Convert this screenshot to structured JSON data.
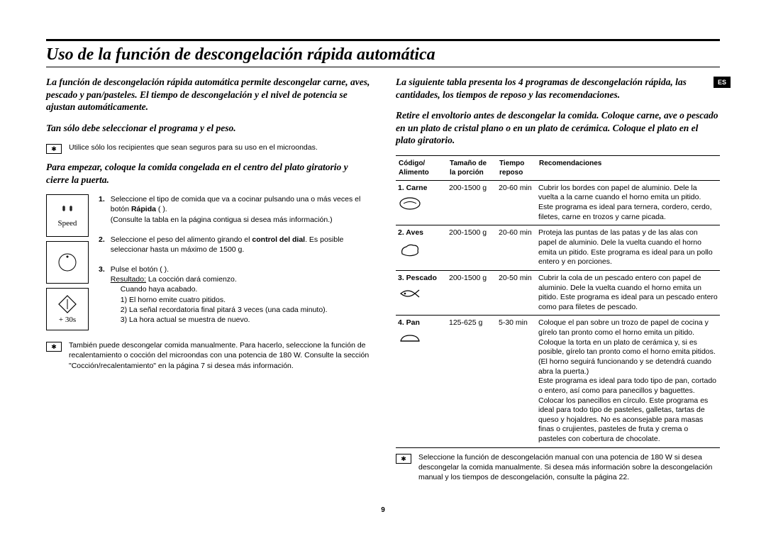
{
  "lang_badge": "ES",
  "page_number": "9",
  "title": "Uso de la función de descongelación rápida automática",
  "left": {
    "intro1": "La función de descongelación rápida automática permite descongelar carne, aves, pescado y pan/pasteles. El tiempo de descongelación y el nivel de potencia se ajustan automáticamente.",
    "intro2": "Tan sólo debe seleccionar el programa y el peso.",
    "note1": "Utilice sólo los recipientes que sean seguros para su uso en el microondas.",
    "intro3": "Para empezar, coloque la comida congelada en el centro del plato giratorio y cierre la puerta.",
    "speed_label": "Speed",
    "plus30_label": "+ 30s",
    "step1_a": "Seleccione el tipo de comida que va a cocinar pulsando una o más veces el botón ",
    "step1_bold": "Rápida",
    "step1_b": " ( ).",
    "step1_c": "(Consulte la tabla en la página contigua si desea más información.)",
    "step2_a": "Seleccione el peso del alimento girando el ",
    "step2_bold": "control del dial",
    "step2_b": ". Es posible seleccionar hasta un máximo de 1500 g.",
    "step3_a": "Pulse el botón ( ).",
    "step3_res_label": "Resultado:",
    "step3_res": " La cocción dará comienzo.",
    "step3_l0": "Cuando haya acabado.",
    "step3_l1": "1) El horno emite cuatro pitidos.",
    "step3_l2": "2) La señal recordatoria final pitará 3 veces (una cada minuto).",
    "step3_l3": "3) La hora actual se muestra de nuevo.",
    "note2": "También puede descongelar comida manualmente. Para hacerlo, seleccione la función de recalentamiento o cocción del microondas con una potencia de 180 W. Consulte la sección \"Cocción/recalentamiento\" en la página 7 si desea más información."
  },
  "right": {
    "intro1": "La siguiente tabla presenta los 4 programas de descongelación rápida, las cantidades, los tiempos de reposo y las recomendaciones.",
    "intro2": "Retire el envoltorio antes de descongelar la comida. Coloque carne, ave o pescado en un plato de cristal plano o en un plato de cerámica. Coloque el plato en el plato giratorio.",
    "headers": {
      "code": "Código/ Alimento",
      "size": "Tamaño de la porción",
      "time": "Tiempo reposo",
      "rec": "Recomendaciones"
    },
    "rows": [
      {
        "code": "1. Carne",
        "size": "200-1500 g",
        "time": "20-60 min",
        "rec": "Cubrir los bordes con papel de aluminio. Dele la vuelta a la carne cuando el horno emita un pitido.\nEste programa es ideal para ternera, cordero, cerdo, filetes, carne en trozos y carne picada."
      },
      {
        "code": "2. Aves",
        "size": "200-1500 g",
        "time": "20-60 min",
        "rec": "Proteja las puntas de las patas y de las alas con papel de aluminio. Dele la vuelta cuando el horno emita un pitido. Este programa es ideal para un pollo entero y en porciones."
      },
      {
        "code": "3. Pescado",
        "size": "200-1500 g",
        "time": "20-50 min",
        "rec": "Cubrir la cola de un pescado entero con papel de aluminio. Dele la vuelta cuando el horno emita un pitido. Este programa es ideal para un pescado entero como para filetes de pescado."
      },
      {
        "code": "4. Pan",
        "size": "125-625 g",
        "time": "5-30 min",
        "rec": "Coloque el pan sobre un trozo de papel de cocina y gírelo tan pronto como el horno emita un pitido. Coloque la torta en un plato de cerámica y, si es posible, gírelo tan pronto como el horno emita pitidos. (El horno seguirá funcionando y se detendrá cuando abra la puerta.)\nEste programa es ideal para todo tipo de pan, cortado o entero, así como para panecillos y baguettes. Colocar los panecillos en círculo. Este programa es ideal para todo tipo de pasteles, galletas, tartas de queso y hojaldres. No es aconsejable para masas finas o crujientes, pasteles de fruta y crema o pasteles con cobertura de chocolate."
      }
    ],
    "footnote": "Seleccione la función de descongelación manual con una potencia de 180 W si desea descongelar la comida manualmente. Si desea más información sobre la descongelación manual y los tiempos de descongelación, consulte la página 22."
  }
}
